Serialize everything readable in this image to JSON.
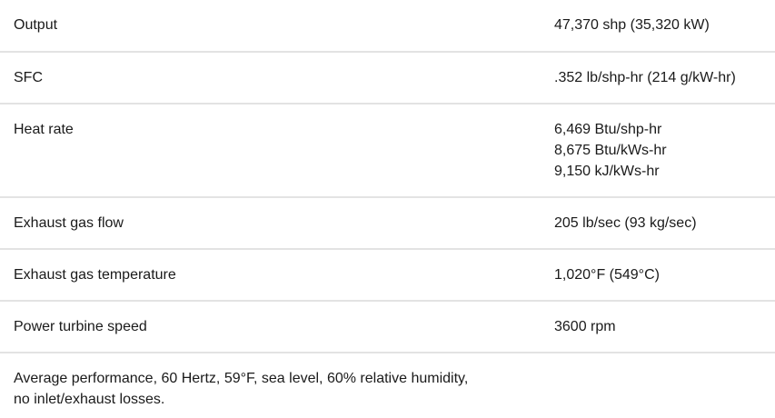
{
  "specs": [
    {
      "label": "Output",
      "values": [
        "47,370 shp (35,320 kW)"
      ]
    },
    {
      "label": "SFC",
      "values": [
        ".352 lb/shp-hr (214 g/kW-hr)"
      ]
    },
    {
      "label": "Heat rate",
      "values": [
        "6,469 Btu/shp-hr",
        "8,675 Btu/kWs-hr",
        "9,150 kJ/kWs-hr"
      ]
    },
    {
      "label": "Exhaust gas flow",
      "values": [
        "205 lb/sec (93 kg/sec)"
      ]
    },
    {
      "label": "Exhaust gas temperature",
      "values": [
        "1,020°F (549°C)"
      ]
    },
    {
      "label": "Power turbine speed",
      "values": [
        "3600 rpm"
      ]
    }
  ],
  "footnote": {
    "lines": [
      "Average performance, 60 Hertz, 59°F, sea level, 60% relative humidity,",
      "no inlet/exhaust losses."
    ]
  }
}
